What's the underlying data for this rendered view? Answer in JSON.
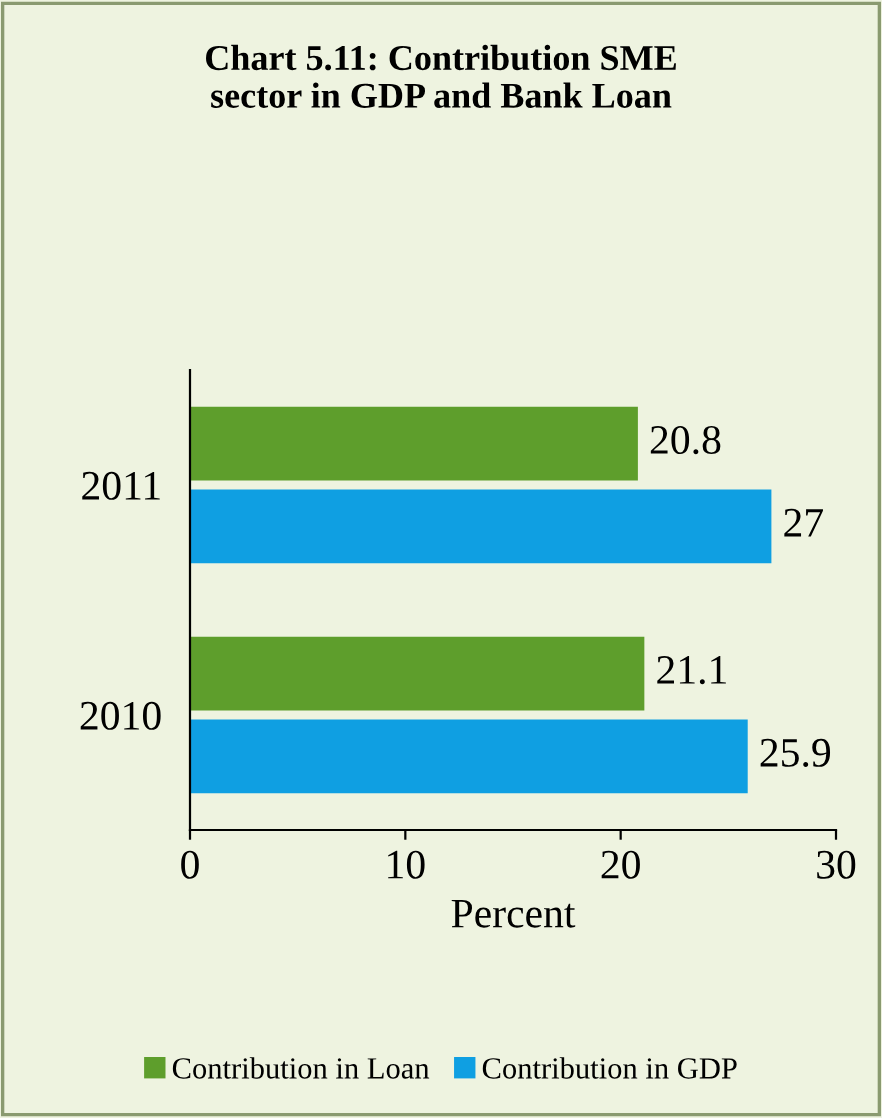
{
  "chart_data": {
    "type": "bar",
    "orientation": "horizontal",
    "title": "Chart 5.11: Contribution SME\nsector in GDP and Bank Loan",
    "xlabel": "Percent",
    "categories": [
      "2011",
      "2010"
    ],
    "series": [
      {
        "name": "Contribution in Loan",
        "color": "#5e9e2c",
        "values": [
          20.8,
          21.1
        ]
      },
      {
        "name": "Contribution in GDP",
        "color": "#0f9fe2",
        "values": [
          27,
          25.9
        ]
      }
    ],
    "xlim": [
      0,
      30
    ],
    "xticks": [
      0,
      10,
      20,
      30
    ],
    "data_labels": true,
    "grid": false,
    "legend": "bottom"
  }
}
